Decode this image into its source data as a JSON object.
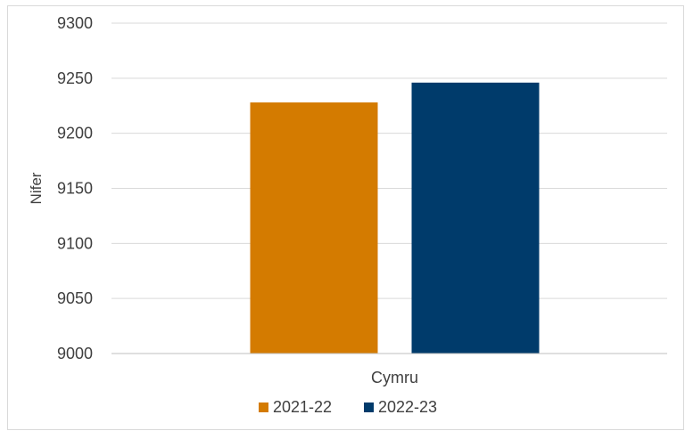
{
  "chart_data": {
    "type": "bar",
    "categories": [
      "Cymru"
    ],
    "series": [
      {
        "name": "2021-22",
        "values": [
          9228
        ],
        "color": "#D47B00"
      },
      {
        "name": "2022-23",
        "values": [
          9246
        ],
        "color": "#003B6B"
      }
    ],
    "ylabel": "Nifer",
    "xlabel": "",
    "ylim": [
      9000,
      9300
    ],
    "yticks": [
      9000,
      9050,
      9100,
      9150,
      9200,
      9250,
      9300
    ],
    "ytick_labels": [
      "9000",
      "9050",
      "9100",
      "9150",
      "9200",
      "9250",
      "9300"
    ],
    "grid": true,
    "legend_position": "bottom",
    "gridline_color": "#d9d9d9"
  }
}
